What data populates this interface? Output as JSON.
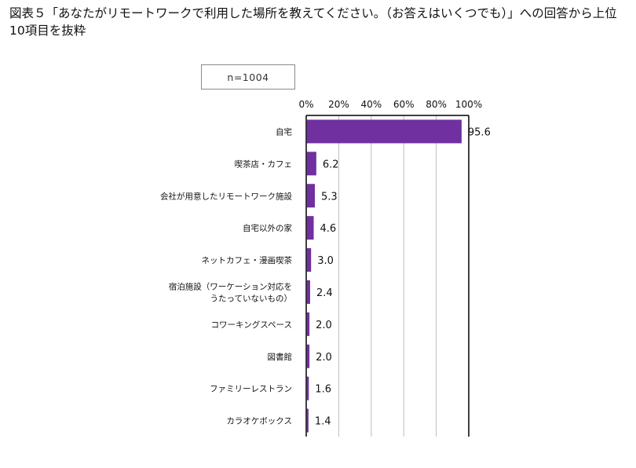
{
  "title": "図表５「あなたがリモートワークで利用した場所を教えてください。（お答えはいくつでも）」への回答から上位10項目を抜粋",
  "sample_note": "n=1004",
  "chart_data": {
    "type": "bar",
    "orientation": "horizontal",
    "title": "図表５「あなたがリモートワークで利用した場所を教えてください。（お答えはいくつでも）」への回答から上位10項目を抜粋",
    "xlabel": "",
    "ylabel": "",
    "xlim": [
      0,
      100
    ],
    "x_ticks": [
      "0%",
      "20%",
      "40%",
      "60%",
      "80%",
      "100%"
    ],
    "tick_position": "top",
    "grid": true,
    "bar_color": "#7030A0",
    "categories": [
      [
        "自宅"
      ],
      [
        "喫茶店・カフェ"
      ],
      [
        "会社が用意したリモートワーク施設"
      ],
      [
        "自宅以外の家"
      ],
      [
        "ネットカフェ・漫画喫茶"
      ],
      [
        "宿泊施設（ワーケーション対応を",
        "うたっていないもの）"
      ],
      [
        "コワーキングスペース"
      ],
      [
        "図書館"
      ],
      [
        "ファミリーレストラン"
      ],
      [
        "カラオケボックス"
      ]
    ],
    "values": [
      95.6,
      6.2,
      5.3,
      4.6,
      3.0,
      2.4,
      2.0,
      2.0,
      1.6,
      1.4
    ],
    "value_labels": [
      "95.6",
      "6.2",
      "5.3",
      "4.6",
      "3.0",
      "2.4",
      "2.0",
      "2.0",
      "1.6",
      "1.4"
    ]
  }
}
